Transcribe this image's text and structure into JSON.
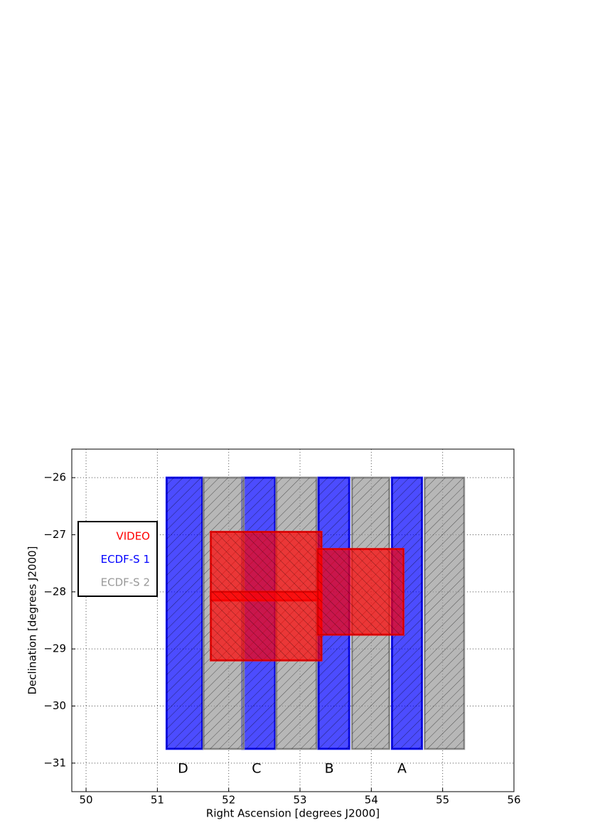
{
  "chart_data": {
    "type": "footprint",
    "xlabel": "Right Ascension [degrees J2000]",
    "ylabel": "Declination [degrees J2000]",
    "xlim": [
      49.8,
      56
    ],
    "ylim": [
      -31.5,
      -25.5
    ],
    "xticks": [
      50,
      51,
      52,
      53,
      54,
      55,
      56
    ],
    "yticks": [
      {
        "value": -26,
        "label": "−26"
      },
      {
        "value": -27,
        "label": "−27"
      },
      {
        "value": -28,
        "label": "−28"
      },
      {
        "value": -29,
        "label": "−29"
      },
      {
        "value": -30,
        "label": "−30"
      },
      {
        "value": -31,
        "label": "−31"
      }
    ],
    "grid": true,
    "legend": "upper left",
    "series": [
      {
        "name": "VIDEO",
        "color": "#ff0000",
        "hatch": "/",
        "rects": [
          [
            51.75,
            53.3,
            -28.15,
            -26.95
          ],
          [
            51.75,
            53.3,
            -29.2,
            -28.0
          ],
          [
            53.25,
            54.45,
            -28.75,
            -27.25
          ]
        ]
      },
      {
        "name": "ECDF-S 1",
        "color": "#0000ff",
        "hatch": "\\",
        "rects": [
          [
            51.13,
            51.63,
            -30.75,
            -26
          ],
          [
            52.19,
            52.65,
            -30.75,
            -26
          ],
          [
            53.26,
            53.69,
            -30.75,
            -26
          ],
          [
            54.29,
            54.71,
            -30.75,
            -26
          ]
        ]
      },
      {
        "name": "ECDF-S 2",
        "color": "#999999",
        "hatch": "\\",
        "rects": [
          [
            51.65,
            52.21,
            -30.75,
            -26
          ],
          [
            52.67,
            53.23,
            -30.75,
            -26
          ],
          [
            53.73,
            54.25,
            -30.75,
            -26
          ],
          [
            54.75,
            55.3,
            -30.75,
            -26
          ]
        ]
      }
    ],
    "annotations": [
      {
        "text": "D",
        "x": 51.36,
        "y": -31.1
      },
      {
        "text": "C",
        "x": 52.39,
        "y": -31.1
      },
      {
        "text": "B",
        "x": 53.41,
        "y": -31.1
      },
      {
        "text": "A",
        "x": 54.43,
        "y": -31.1
      }
    ]
  }
}
